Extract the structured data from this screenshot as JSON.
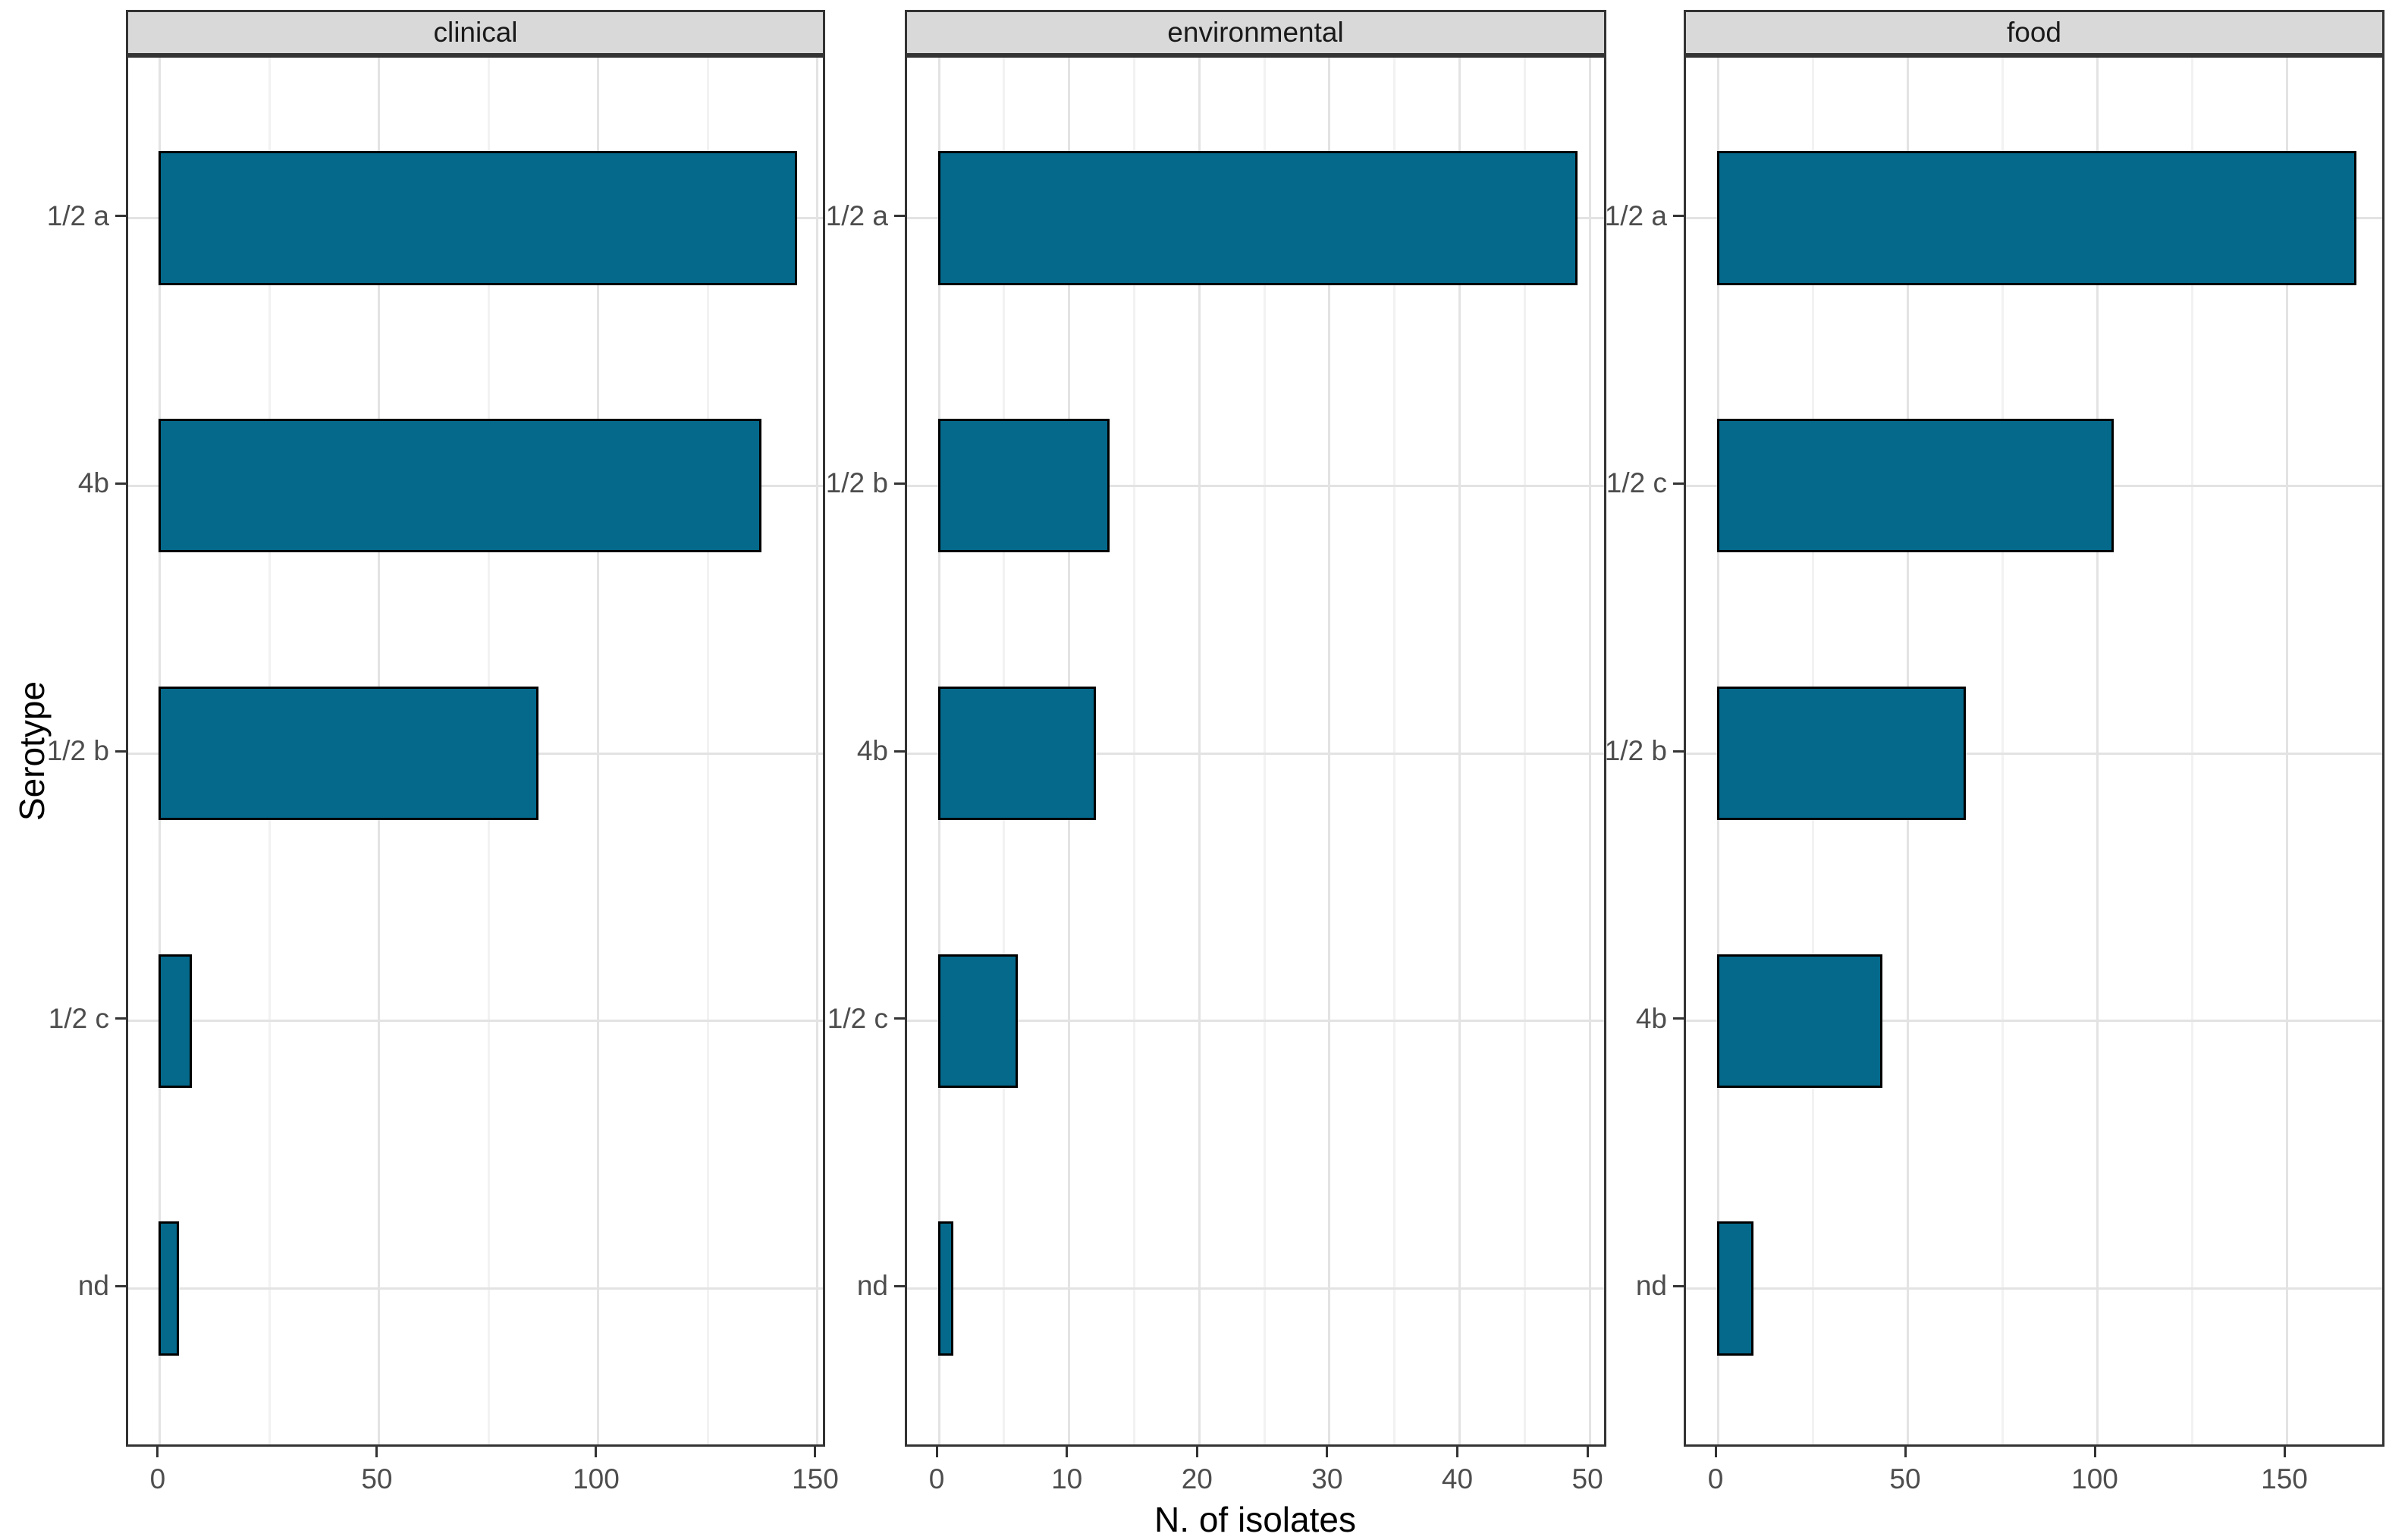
{
  "chart_data": {
    "type": "bar",
    "orientation": "horizontal",
    "xlabel": "N. of isolates",
    "ylabel": "Serotype",
    "legend": "none",
    "grid": "major-and-minor",
    "facets": [
      {
        "label": "clinical",
        "categories": [
          "1/2 a",
          "4b",
          "1/2 b",
          "1/2 c",
          "nd"
        ],
        "values": [
          145,
          137,
          86,
          7,
          4
        ],
        "x_ticks": [
          0,
          50,
          100,
          150
        ],
        "x_max_data": 145
      },
      {
        "label": "environmental",
        "categories": [
          "1/2 a",
          "1/2 b",
          "4b",
          "1/2 c",
          "nd"
        ],
        "values": [
          49,
          13,
          12,
          6,
          1
        ],
        "x_ticks": [
          0,
          10,
          20,
          30,
          40,
          50
        ],
        "x_max_data": 49
      },
      {
        "label": "food",
        "categories": [
          "1/2 a",
          "1/2 c",
          "1/2 b",
          "4b",
          "nd"
        ],
        "values": [
          168,
          104,
          65,
          43,
          9
        ],
        "x_ticks": [
          0,
          50,
          100,
          150
        ],
        "x_max_data": 168
      }
    ],
    "colors": {
      "bar_fill": "#05698B",
      "bar_stroke": "#000000",
      "strip_fill": "#d9d9d9",
      "panel_border": "#333333",
      "grid_major": "#e3e3e3",
      "grid_minor": "#f2f2f2",
      "tick_label": "#4d4d4d",
      "axis_title": "#000000"
    }
  }
}
